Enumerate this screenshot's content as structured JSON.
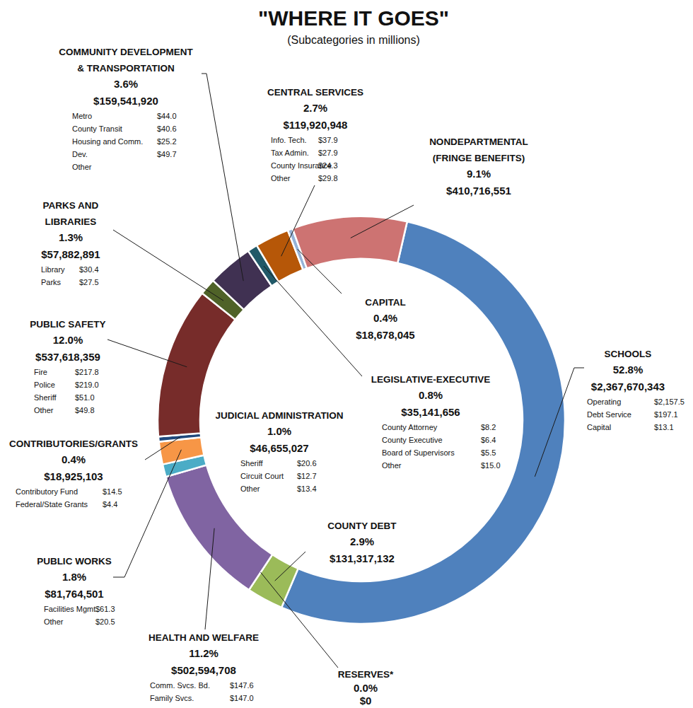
{
  "chart_data": {
    "type": "pie",
    "title": "\"WHERE IT GOES\"",
    "subtitle": "(Subcategories in millions)",
    "categories": [
      "SCHOOLS",
      "COUNTY DEBT",
      "RESERVES*",
      "HEALTH AND WELFARE",
      "JUDICIAL ADMINISTRATION",
      "PUBLIC WORKS",
      "CONTRIBUTORIES/GRANTS",
      "PUBLIC SAFETY",
      "PARKS AND LIBRARIES",
      "COMMUNITY DEVELOPMENT & TRANSPORTATION",
      "LEGISLATIVE-EXECUTIVE",
      "CENTRAL SERVICES",
      "CAPITAL",
      "NONDEPARTMENTAL (FRINGE BENEFITS)"
    ],
    "values": [
      52.8,
      2.9,
      0.0,
      11.2,
      1.0,
      1.8,
      0.4,
      12.0,
      1.3,
      3.6,
      0.8,
      2.7,
      0.4,
      9.1
    ],
    "value_labels": [
      "52.8%",
      "2.9%",
      "0.0%",
      "11.2%",
      "1.0%",
      "1.8%",
      "0.4%",
      "12.0%",
      "1.3%",
      "3.6%",
      "0.8%",
      "2.7%",
      "0.4%",
      "9.1%"
    ],
    "data_labels": true,
    "colors": [
      "#4f81bd",
      "#9bbb59",
      "#8eb4e3",
      "#8064a2",
      "#4bacc6",
      "#f79646",
      "#1f497d",
      "#772c2a",
      "#4f6228",
      "#403152",
      "#215968",
      "#b65708",
      "#95b3d7",
      "#cd7372"
    ],
    "amounts": [
      "$2,367,670,343",
      "$131,317,132",
      "$0",
      "$502,594,708",
      "$46,655,027",
      "$81,764,501",
      "$18,925,103",
      "$537,618,359",
      "$57,882,891",
      "$159,541,920",
      "$35,141,656",
      "$119,920,948",
      "$18,678,045",
      "$410,716,551"
    ],
    "subcategories": [
      [
        {
          "name": "Operating",
          "value": "$2,157.5"
        },
        {
          "name": "Debt Service",
          "value": "$197.1"
        },
        {
          "name": "Capital",
          "value": "$13.1"
        }
      ],
      [],
      [],
      [
        {
          "name": "Comm. Svcs. Bd.",
          "value": "$147.6"
        },
        {
          "name": "Family Svcs.",
          "value": "$147.0"
        }
      ],
      [
        {
          "name": "Sheriff",
          "value": "$20.6"
        },
        {
          "name": "Circuit Court",
          "value": "$12.7"
        },
        {
          "name": "Other",
          "value": "$13.4"
        }
      ],
      [
        {
          "name": "Facilities Mgmt.",
          "value": "$61.3"
        },
        {
          "name": "Other",
          "value": "$20.5"
        }
      ],
      [
        {
          "name": "Contributory Fund",
          "value": "$14.5"
        },
        {
          "name": "Federal/State Grants",
          "value": "$4.4"
        }
      ],
      [
        {
          "name": "Fire",
          "value": "$217.8"
        },
        {
          "name": "Police",
          "value": "$219.0"
        },
        {
          "name": "Sheriff",
          "value": "$51.0"
        },
        {
          "name": "Other",
          "value": "$49.8"
        }
      ],
      [
        {
          "name": "Library",
          "value": "$30.4"
        },
        {
          "name": "Parks",
          "value": "$27.5"
        }
      ],
      [
        {
          "name": "Metro",
          "value": "$44.0"
        },
        {
          "name": "County Transit",
          "value": "$40.6"
        },
        {
          "name": "Housing and Comm.",
          "value": "$25.2"
        },
        {
          "name": "Dev.",
          "value": "$49.7"
        },
        {
          "name": "Other"
        }
      ],
      [
        {
          "name": "County Attorney",
          "value": "$8.2"
        },
        {
          "name": "County Executive",
          "value": "$6.4"
        },
        {
          "name": "Board of Supervisors",
          "value": "$5.5"
        },
        {
          "name": "Other",
          "value": "$15.0"
        }
      ],
      [
        {
          "name": "Info. Tech.",
          "value": "$37.9"
        },
        {
          "name": "Tax Admin.",
          "value": "$27.9"
        },
        {
          "name": "County Insurance",
          "value": "$24.3"
        },
        {
          "name": "Other",
          "value": "$29.8"
        }
      ],
      [],
      []
    ]
  }
}
